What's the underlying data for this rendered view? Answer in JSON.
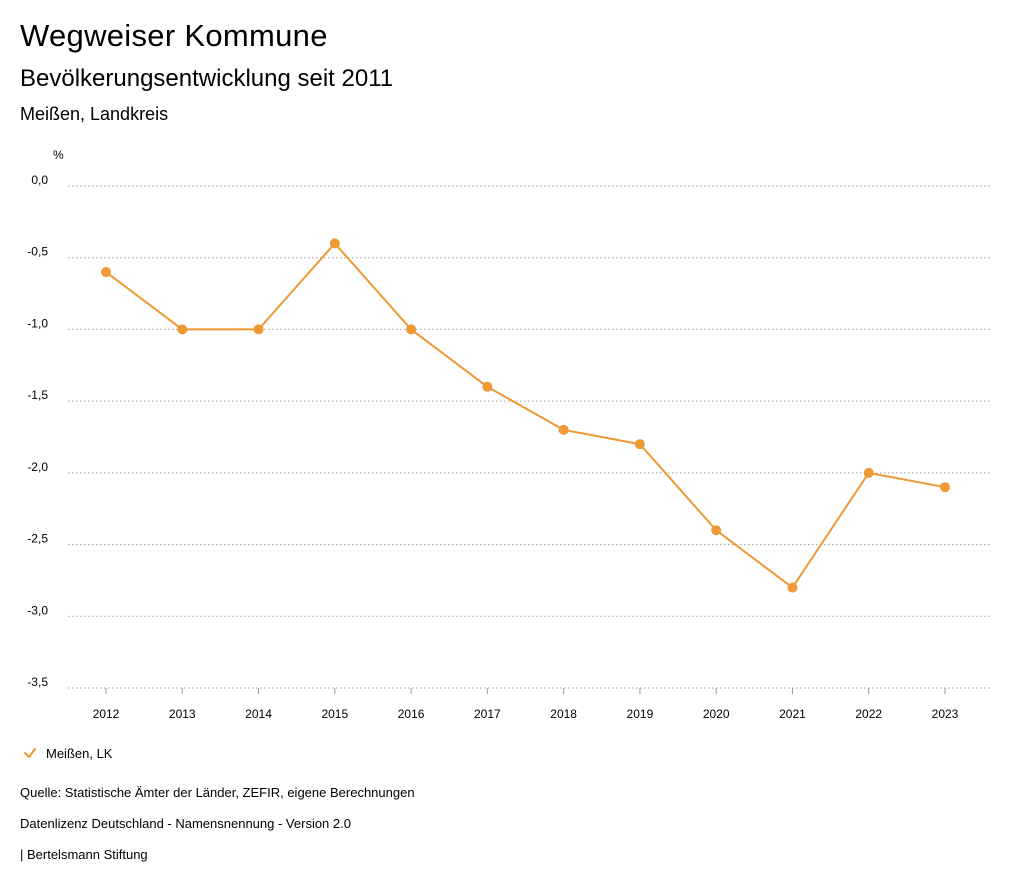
{
  "header": {
    "title": "Wegweiser Kommune",
    "subtitle": "Bevölkerungsentwicklung seit 2011",
    "region": "Meißen, Landkreis"
  },
  "chart_data": {
    "type": "line",
    "title": "Bevölkerungsentwicklung seit 2011",
    "ylabel": "%",
    "xlabel": "",
    "categories": [
      "2012",
      "2013",
      "2014",
      "2015",
      "2016",
      "2017",
      "2018",
      "2019",
      "2020",
      "2021",
      "2022",
      "2023"
    ],
    "series": [
      {
        "name": "Meißen, LK",
        "values": [
          -0.6,
          -1.0,
          -1.0,
          -0.4,
          -1.0,
          -1.4,
          -1.7,
          -1.8,
          -2.4,
          -2.8,
          -2.0,
          -2.1
        ]
      }
    ],
    "ylim": [
      -3.5,
      0.0
    ],
    "yticks": [
      "0,0",
      "-0,5",
      "-1,0",
      "-1,5",
      "-2,0",
      "-2,5",
      "-3,0",
      "-3,5"
    ],
    "ytick_values": [
      0.0,
      -0.5,
      -1.0,
      -1.5,
      -2.0,
      -2.5,
      -3.0,
      -3.5
    ],
    "grid": true,
    "legend_position": "bottom-left",
    "color": "#ee9933"
  },
  "legend": {
    "label": "Meißen, LK",
    "icon": "check-icon"
  },
  "footer": {
    "source": "Quelle: Statistische Ämter der Länder, ZEFIR, eigene Berechnungen",
    "license": "Datenlizenz Deutschland - Namensnennung - Version 2.0",
    "publisher": "| Bertelsmann Stiftung"
  }
}
